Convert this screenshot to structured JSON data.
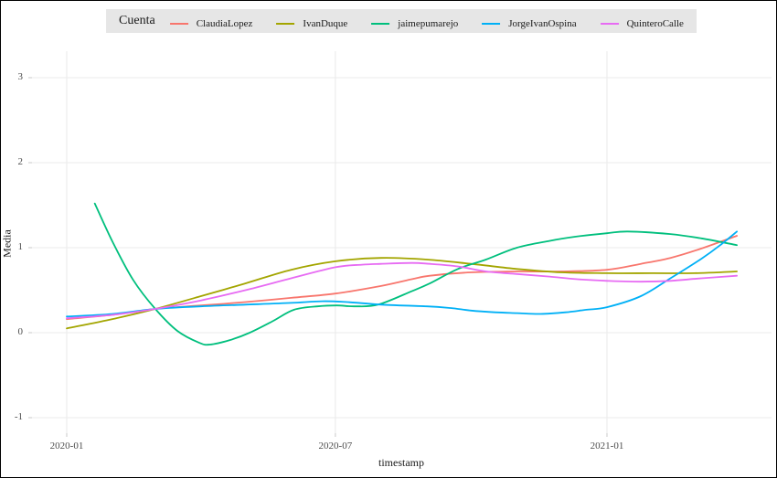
{
  "chart_data": {
    "type": "line",
    "title": "",
    "legend_title": "Cuenta",
    "legend_position": "top-center",
    "xlabel": "timestamp",
    "ylabel": "Media",
    "x_unit": "days since 2020-01-01",
    "x_ticks": [
      {
        "label": "2020-01",
        "day": 0
      },
      {
        "label": "2020-07",
        "day": 182
      },
      {
        "label": "2021-01",
        "day": 366
      }
    ],
    "y_ticks": [
      3,
      2,
      1,
      0,
      -1
    ],
    "ylim": [
      -1.2,
      3.3
    ],
    "grid": "major gridlines only, light gray on white panel",
    "series": [
      {
        "name": "ClaudiaLopez",
        "color": "#F8766D",
        "points": [
          [
            0,
            0.16
          ],
          [
            31,
            0.21
          ],
          [
            60,
            0.28
          ],
          [
            91,
            0.32
          ],
          [
            121,
            0.36
          ],
          [
            152,
            0.41
          ],
          [
            182,
            0.46
          ],
          [
            213,
            0.55
          ],
          [
            234,
            0.63
          ],
          [
            246,
            0.67
          ],
          [
            274,
            0.71
          ],
          [
            305,
            0.72
          ],
          [
            335,
            0.72
          ],
          [
            366,
            0.74
          ],
          [
            389,
            0.81
          ],
          [
            409,
            0.88
          ],
          [
            430,
            0.99
          ],
          [
            454,
            1.14
          ]
        ]
      },
      {
        "name": "IvanDuque",
        "color": "#A3A500",
        "points": [
          [
            0,
            0.05
          ],
          [
            31,
            0.16
          ],
          [
            60,
            0.28
          ],
          [
            91,
            0.43
          ],
          [
            121,
            0.58
          ],
          [
            152,
            0.74
          ],
          [
            182,
            0.84
          ],
          [
            213,
            0.88
          ],
          [
            244,
            0.86
          ],
          [
            274,
            0.81
          ],
          [
            305,
            0.75
          ],
          [
            335,
            0.71
          ],
          [
            366,
            0.7
          ],
          [
            397,
            0.7
          ],
          [
            425,
            0.7
          ],
          [
            454,
            0.72
          ]
        ]
      },
      {
        "name": "jaimepumarejo",
        "color": "#00BF7D",
        "points": [
          [
            19,
            1.52
          ],
          [
            31,
            1.07
          ],
          [
            45,
            0.62
          ],
          [
            60,
            0.28
          ],
          [
            75,
            0.02
          ],
          [
            90,
            -0.12
          ],
          [
            97,
            -0.14
          ],
          [
            110,
            -0.09
          ],
          [
            124,
            0.0
          ],
          [
            140,
            0.14
          ],
          [
            154,
            0.27
          ],
          [
            170,
            0.31
          ],
          [
            183,
            0.32
          ],
          [
            195,
            0.31
          ],
          [
            211,
            0.33
          ],
          [
            234,
            0.49
          ],
          [
            246,
            0.58
          ],
          [
            265,
            0.75
          ],
          [
            284,
            0.86
          ],
          [
            305,
            1.0
          ],
          [
            327,
            1.08
          ],
          [
            345,
            1.13
          ],
          [
            366,
            1.17
          ],
          [
            380,
            1.19
          ],
          [
            409,
            1.16
          ],
          [
            430,
            1.11
          ],
          [
            454,
            1.03
          ]
        ]
      },
      {
        "name": "JorgeIvanOspina",
        "color": "#00B0F6",
        "points": [
          [
            0,
            0.19
          ],
          [
            31,
            0.22
          ],
          [
            60,
            0.28
          ],
          [
            91,
            0.31
          ],
          [
            121,
            0.33
          ],
          [
            152,
            0.35
          ],
          [
            173,
            0.37
          ],
          [
            190,
            0.36
          ],
          [
            213,
            0.33
          ],
          [
            244,
            0.31
          ],
          [
            260,
            0.29
          ],
          [
            274,
            0.26
          ],
          [
            290,
            0.24
          ],
          [
            305,
            0.23
          ],
          [
            321,
            0.22
          ],
          [
            338,
            0.24
          ],
          [
            352,
            0.27
          ],
          [
            366,
            0.3
          ],
          [
            389,
            0.43
          ],
          [
            409,
            0.64
          ],
          [
            430,
            0.87
          ],
          [
            442,
            1.02
          ],
          [
            454,
            1.19
          ]
        ]
      },
      {
        "name": "QuinteroCalle",
        "color": "#E76BF3",
        "points": [
          [
            0,
            0.17
          ],
          [
            31,
            0.21
          ],
          [
            60,
            0.28
          ],
          [
            91,
            0.38
          ],
          [
            121,
            0.5
          ],
          [
            152,
            0.64
          ],
          [
            182,
            0.77
          ],
          [
            200,
            0.8
          ],
          [
            213,
            0.81
          ],
          [
            234,
            0.82
          ],
          [
            246,
            0.81
          ],
          [
            265,
            0.78
          ],
          [
            284,
            0.72
          ],
          [
            305,
            0.69
          ],
          [
            327,
            0.66
          ],
          [
            345,
            0.63
          ],
          [
            366,
            0.61
          ],
          [
            389,
            0.6
          ],
          [
            409,
            0.61
          ],
          [
            430,
            0.64
          ],
          [
            454,
            0.67
          ]
        ]
      }
    ]
  },
  "style": {
    "background": "#FFFFFF",
    "border_color": "#000000",
    "gridline_color": "#EBEBEB",
    "tick_color": "#C9C9C9",
    "tick_label_color": "#4D4D4D",
    "legend_bg": "#E6E6E6",
    "text_color": "#1A1A1A"
  }
}
